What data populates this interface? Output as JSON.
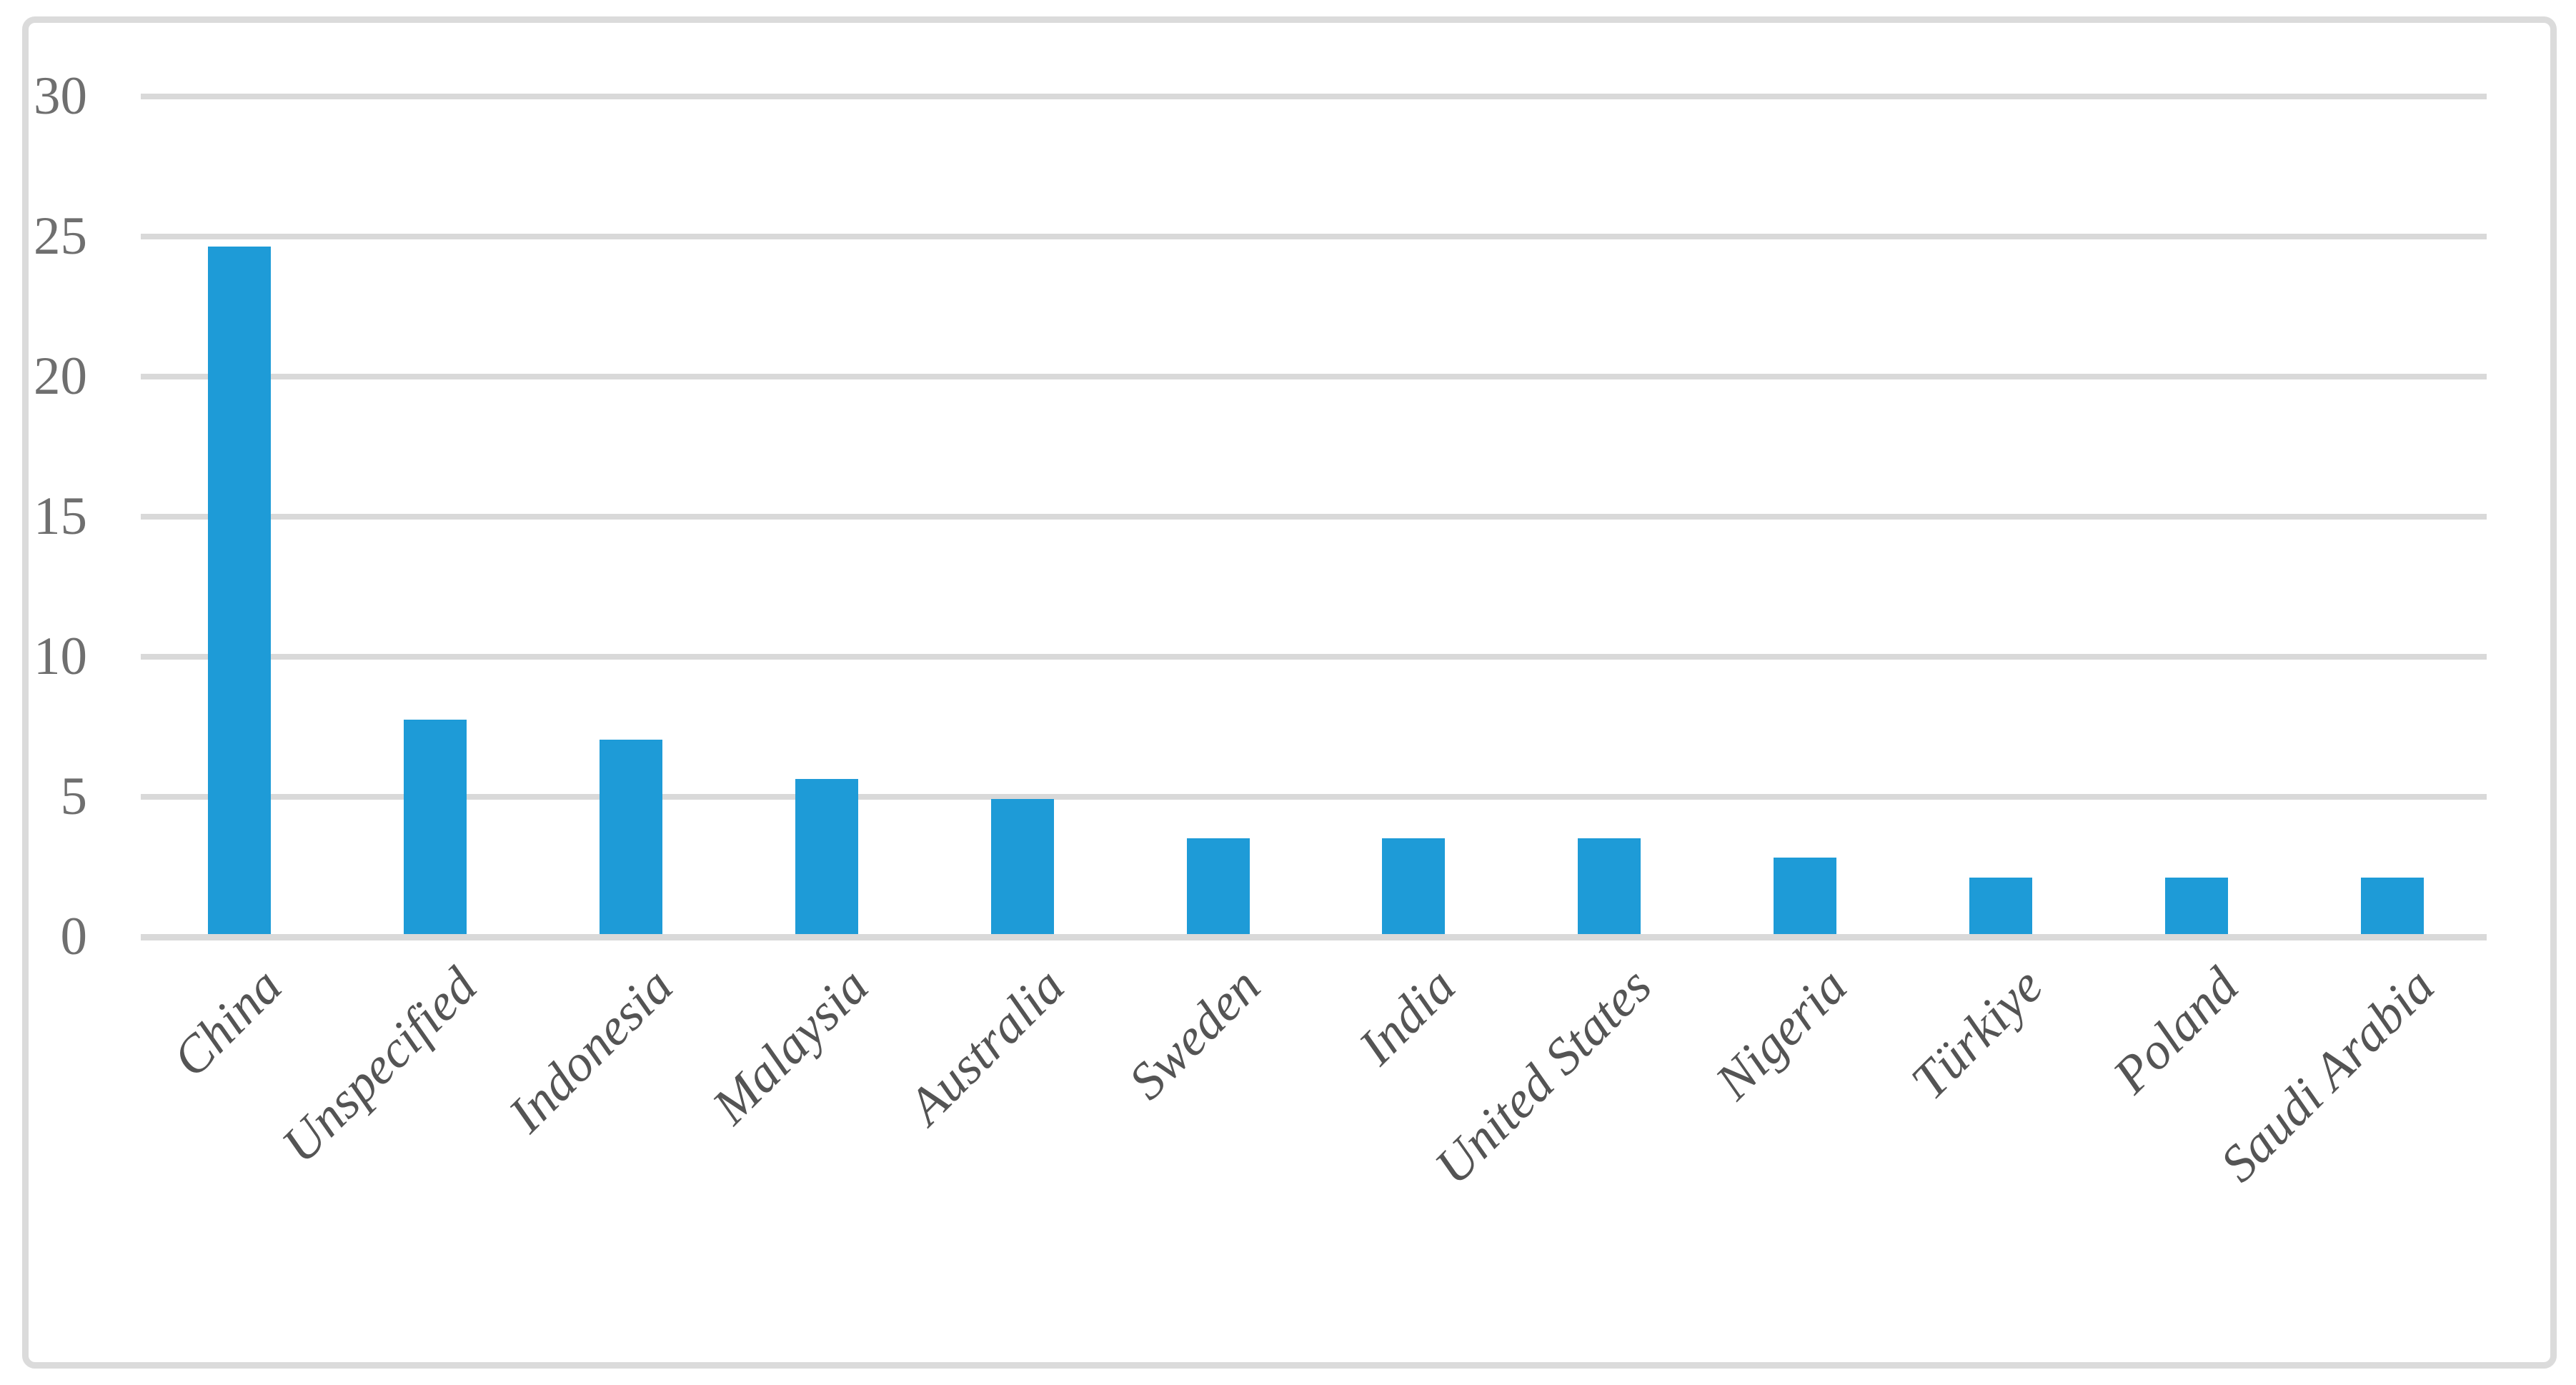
{
  "figure": {
    "background_color": "#ffffff",
    "frame_border_color": "#dbdbdb"
  },
  "chart_data": {
    "type": "bar",
    "title": "",
    "subtitle": "",
    "xlabel": "",
    "ylabel": "",
    "categories": [
      "China",
      "Unspecified",
      "Indonesia",
      "Malaysia",
      "Australia",
      "Sweden",
      "India",
      "United States",
      "Nigeria",
      "Türkiye",
      "Poland",
      "Saudi Arabia"
    ],
    "values": [
      24.65,
      7.75,
      7.04,
      5.63,
      4.93,
      3.52,
      3.52,
      3.52,
      2.82,
      2.11,
      2.11,
      2.11
    ],
    "series_name": "",
    "ylim": [
      0,
      30
    ],
    "yticks": [
      0,
      5,
      10,
      15,
      20,
      25,
      30
    ],
    "ytick_labels": [
      "0",
      "5",
      "10",
      "15",
      "20",
      "25",
      "30"
    ],
    "grid": true,
    "legend": false,
    "legend_position": "none",
    "category_label_rotation_deg": -45,
    "bar_color": "#1e9bd7",
    "gridline_color": "#d9d9d9",
    "axis_line_color": "#d9d9d9",
    "ytick_label_color": "#6f6f6f",
    "category_label_color": "#545454"
  }
}
